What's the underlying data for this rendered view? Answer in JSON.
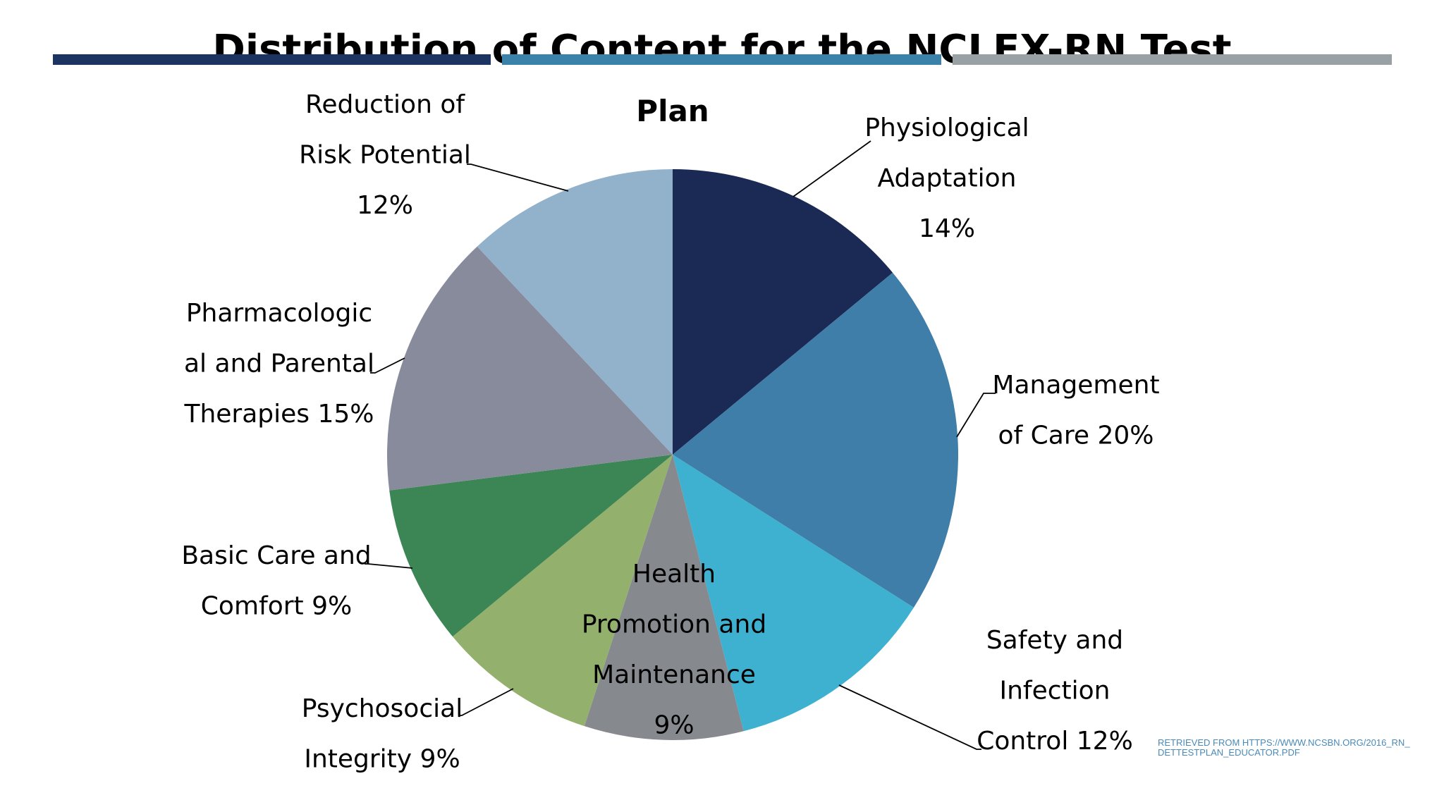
{
  "slide": {
    "title": "Distribution of Content for the NCLEX-RN Test",
    "accent_colors": [
      "#1c3461",
      "#3b82ab",
      "#99a1a4"
    ],
    "source_note": "RETRIEVED FROM HTTPS://WWW.NCSBN.ORG/2016_RN_DETTESTPLAN_EDUCATOR.PDF"
  },
  "chart_data": {
    "type": "pie",
    "title": "Plan",
    "unit": "%",
    "slices": [
      {
        "label_lines": [
          "Physiological",
          "Adaptation",
          "14%"
        ],
        "value": 14,
        "color": "#1b2a55"
      },
      {
        "label_lines": [
          "Management",
          "of Care 20%"
        ],
        "value": 20,
        "color": "#3e7ea8"
      },
      {
        "label_lines": [
          "Safety and",
          "Infection",
          "Control 12%"
        ],
        "value": 12,
        "color": "#3db1cf"
      },
      {
        "label_lines": [
          "Health",
          "Promotion and",
          "Maintenance",
          "9%"
        ],
        "value": 9,
        "color": "#868a8f"
      },
      {
        "label_lines": [
          "Psychosocial",
          "Integrity 9%"
        ],
        "value": 9,
        "color": "#93b06d"
      },
      {
        "label_lines": [
          "Basic Care and",
          "Comfort 9%"
        ],
        "value": 9,
        "color": "#3c8554"
      },
      {
        "label_lines": [
          "Pharmacologic",
          "al and Parental",
          "Therapies 15%"
        ],
        "value": 15,
        "color": "#878b9b"
      },
      {
        "label_lines": [
          "Reduction of",
          "Risk Potential",
          "12%"
        ],
        "value": 12,
        "color": "#92b1cb"
      }
    ]
  }
}
